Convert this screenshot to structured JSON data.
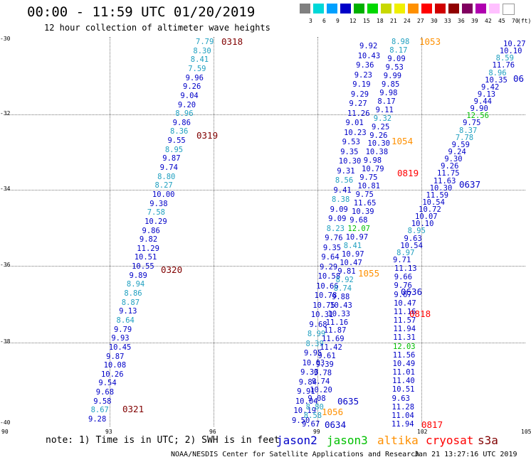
{
  "title": "00:00 - 11:59 UTC 01/20/2019",
  "subtitle": "12 hour collection of altimeter wave heights",
  "scale": {
    "colors": [
      "#808080",
      "#00d8d8",
      "#00a0ff",
      "#0000c8",
      "#00b000",
      "#00d800",
      "#c8d800",
      "#f0f000",
      "#ff9000",
      "#ff0000",
      "#d00000",
      "#900000",
      "#800060",
      "#b000b0",
      "#ffc0ff",
      "#ffffff"
    ],
    "labels": [
      "3",
      "6",
      "9",
      "12",
      "15",
      "18",
      "21",
      "24",
      "27",
      "30",
      "33",
      "36",
      "39",
      "42",
      "45",
      "70",
      "(ft)"
    ]
  },
  "axes": {
    "y_labels": [
      "-30",
      "-32",
      "-34",
      "-36",
      "-38",
      "-40"
    ],
    "x_labels": [
      "90",
      "93",
      "96",
      "99",
      "102",
      "105"
    ]
  },
  "colors": {
    "jason2": "#0000c8",
    "jason3": "#00c000",
    "altika": "#ff9000",
    "cryosat": "#ff0000",
    "s3a": "#800000",
    "light": "#20a0c0"
  },
  "series": [
    {
      "name": "t0318",
      "color": "s3a",
      "values": [
        [
          "7.79",
          "light"
        ],
        [
          "8.30",
          "light"
        ],
        [
          "8.41",
          "light"
        ],
        [
          "7.59",
          "light"
        ],
        [
          "9.96",
          "jason2"
        ],
        [
          "9.26",
          "jason2"
        ],
        [
          "9.04",
          "jason2"
        ],
        [
          "9.20",
          "jason2"
        ],
        [
          "8.96",
          "light"
        ],
        [
          "9.86",
          "jason2"
        ],
        [
          "8.36",
          "light"
        ],
        [
          "9.55",
          "jason2"
        ],
        [
          "8.95",
          "light"
        ],
        [
          "9.87",
          "jason2"
        ],
        [
          "9.74",
          "jason2"
        ],
        [
          "8.80",
          "light"
        ],
        [
          "8.27",
          "light"
        ],
        [
          "10.00",
          "jason2"
        ],
        [
          "9.38",
          "jason2"
        ],
        [
          "7.58",
          "light"
        ],
        [
          "10.29",
          "jason2"
        ],
        [
          "9.86",
          "jason2"
        ],
        [
          "9.82",
          "jason2"
        ],
        [
          "11.29",
          "jason2"
        ],
        [
          "10.51",
          "jason2"
        ],
        [
          "10.55",
          "jason2"
        ],
        [
          "9.89",
          "jason2"
        ],
        [
          "8.94",
          "light"
        ],
        [
          "8.86",
          "light"
        ],
        [
          "8.87",
          "light"
        ],
        [
          "9.13",
          "jason2"
        ],
        [
          "8.64",
          "light"
        ],
        [
          "9.79",
          "jason2"
        ],
        [
          "9.93",
          "jason2"
        ],
        [
          "10.45",
          "jason2"
        ],
        [
          "9.87",
          "jason2"
        ],
        [
          "10.08",
          "jason2"
        ],
        [
          "10.26",
          "jason2"
        ],
        [
          "9.54",
          "jason2"
        ],
        [
          "9.68",
          "jason2"
        ],
        [
          "9.58",
          "jason2"
        ],
        [
          "8.67",
          "light"
        ],
        [
          "9.28",
          "jason2"
        ]
      ]
    },
    {
      "name": "t1053",
      "values": [
        [
          "9.92",
          "jason2"
        ],
        [
          "10.43",
          "jason2"
        ],
        [
          "9.36",
          "jason2"
        ],
        [
          "9.23",
          "jason2"
        ],
        [
          "9.19",
          "jason2"
        ],
        [
          "9.29",
          "jason2"
        ],
        [
          "9.27",
          "jason2"
        ],
        [
          "11.26",
          "jason2"
        ],
        [
          "9.01",
          "jason2"
        ],
        [
          "10.23",
          "jason2"
        ],
        [
          "9.53",
          "jason2"
        ],
        [
          "9.35",
          "jason2"
        ],
        [
          "10.30",
          "jason2"
        ],
        [
          "9.31",
          "jason2"
        ],
        [
          "8.56",
          "light"
        ],
        [
          "9.41",
          "jason2"
        ],
        [
          "8.38",
          "light"
        ],
        [
          "9.09",
          "jason2"
        ],
        [
          "9.09",
          "jason2"
        ],
        [
          "8.23",
          "light"
        ],
        [
          "9.76",
          "jason2"
        ],
        [
          "9.35",
          "jason2"
        ],
        [
          "9.64",
          "jason2"
        ],
        [
          "9.29",
          "jason2"
        ],
        [
          "10.58",
          "jason2"
        ],
        [
          "10.66",
          "jason2"
        ],
        [
          "10.78",
          "jason2"
        ],
        [
          "10.75",
          "jason2"
        ],
        [
          "10.31",
          "jason2"
        ],
        [
          "9.68",
          "jason2"
        ],
        [
          "8.99",
          "light"
        ],
        [
          "8.39",
          "light"
        ],
        [
          "9.95",
          "jason2"
        ],
        [
          "10.03",
          "jason2"
        ],
        [
          "9.33",
          "jason2"
        ],
        [
          "9.84",
          "jason2"
        ],
        [
          "9.91",
          "jason2"
        ],
        [
          "10.04",
          "jason2"
        ],
        [
          "10.19",
          "jason2"
        ],
        [
          "9.50",
          "jason2"
        ]
      ]
    },
    {
      "name": "t0819",
      "values": [
        [
          "8.98",
          "light"
        ],
        [
          "8.17",
          "light"
        ],
        [
          "9.09",
          "jason2"
        ],
        [
          "9.53",
          "jason2"
        ],
        [
          "9.99",
          "jason2"
        ],
        [
          "9.85",
          "jason2"
        ],
        [
          "9.98",
          "jason2"
        ],
        [
          "8.17",
          "jason2"
        ],
        [
          "9.11",
          "jason2"
        ],
        [
          "9.32",
          "light"
        ],
        [
          "9.25",
          "jason2"
        ],
        [
          "9.26",
          "jason2"
        ],
        [
          "10.30",
          "jason2"
        ],
        [
          "10.38",
          "jason2"
        ],
        [
          "9.98",
          "jason2"
        ],
        [
          "10.79",
          "jason2"
        ],
        [
          "9.75",
          "jason2"
        ],
        [
          "10.81",
          "jason2"
        ],
        [
          "9.75",
          "jason2"
        ],
        [
          "11.65",
          "jason2"
        ],
        [
          "10.39",
          "jason2"
        ],
        [
          "9.68",
          "jason2"
        ],
        [
          "12.07",
          "jason3"
        ],
        [
          "10.97",
          "jason2"
        ],
        [
          "8.41",
          "light"
        ],
        [
          "10.97",
          "jason2"
        ],
        [
          "10.47",
          "jason2"
        ],
        [
          "9.81",
          "jason2"
        ],
        [
          "8.92",
          "light"
        ],
        [
          "8.74",
          "light"
        ],
        [
          "9.88",
          "jason2"
        ],
        [
          "10.43",
          "jason2"
        ],
        [
          "10.33",
          "jason2"
        ],
        [
          "11.16",
          "jason2"
        ],
        [
          "11.87",
          "jason2"
        ],
        [
          "11.69",
          "jason2"
        ],
        [
          "11.42",
          "jason2"
        ],
        [
          "9.61",
          "jason2"
        ],
        [
          "9.39",
          "jason2"
        ],
        [
          "9.78",
          "jason2"
        ],
        [
          "9.74",
          "jason2"
        ],
        [
          "10.20",
          "jason2"
        ],
        [
          "9.08",
          "jason2"
        ],
        [
          "8.80",
          "light"
        ],
        [
          "8.58",
          "light"
        ],
        [
          "9.67",
          "jason2"
        ]
      ]
    },
    {
      "name": "t0818",
      "values": [
        [
          "11.13",
          "jason2"
        ],
        [
          "9.66",
          "jason2"
        ],
        [
          "9.76",
          "jason2"
        ],
        [
          "9.67",
          "jason2"
        ],
        [
          "10.47",
          "jason2"
        ],
        [
          "11.16",
          "jason2"
        ],
        [
          "11.57",
          "jason2"
        ],
        [
          "11.94",
          "jason2"
        ],
        [
          "11.31",
          "jason2"
        ],
        [
          "12.03",
          "jason3"
        ],
        [
          "11.56",
          "jason2"
        ],
        [
          "10.49",
          "jason2"
        ],
        [
          "11.01",
          "jason2"
        ],
        [
          "11.40",
          "jason2"
        ],
        [
          "10.51",
          "jason2"
        ],
        [
          "9.63",
          "jason2"
        ],
        [
          "11.28",
          "jason2"
        ],
        [
          "11.04",
          "jason2"
        ],
        [
          "11.94",
          "jason2"
        ]
      ]
    },
    {
      "name": "t0637",
      "values": [
        [
          "10.27",
          "jason2"
        ],
        [
          "10.10",
          "jason2"
        ],
        [
          "8.59",
          "light"
        ],
        [
          "11.76",
          "jason2"
        ],
        [
          "8.96",
          "light"
        ],
        [
          "10.35",
          "jason2"
        ],
        [
          "9.42",
          "jason2"
        ],
        [
          "9.13",
          "jason2"
        ],
        [
          "9.44",
          "jason2"
        ],
        [
          "9.90",
          "jason2"
        ],
        [
          "12.56",
          "jason3"
        ],
        [
          "9.75",
          "jason2"
        ],
        [
          "8.37",
          "light"
        ],
        [
          "7.78",
          "light"
        ],
        [
          "9.59",
          "jason2"
        ],
        [
          "9.24",
          "jason2"
        ],
        [
          "9.30",
          "jason2"
        ],
        [
          "9.26",
          "jason2"
        ],
        [
          "11.75",
          "jason2"
        ],
        [
          "11.63",
          "jason2"
        ],
        [
          "10.30",
          "jason2"
        ],
        [
          "11.59",
          "jason2"
        ],
        [
          "10.54",
          "jason2"
        ],
        [
          "10.72",
          "jason2"
        ],
        [
          "10.07",
          "jason2"
        ],
        [
          "10.10",
          "jason2"
        ],
        [
          "8.95",
          "light"
        ],
        [
          "9.63",
          "jason2"
        ],
        [
          "10.54",
          "jason2"
        ],
        [
          "8.97",
          "light"
        ],
        [
          "9.71",
          "jason2"
        ]
      ]
    }
  ],
  "time_labels": [
    {
      "text": "0318",
      "color": "s3a"
    },
    {
      "text": "0319",
      "color": "s3a"
    },
    {
      "text": "0320",
      "color": "s3a"
    },
    {
      "text": "0321",
      "color": "s3a"
    },
    {
      "text": "1053",
      "color": "altika"
    },
    {
      "text": "1054",
      "color": "altika"
    },
    {
      "text": "1055",
      "color": "altika"
    },
    {
      "text": "1056",
      "color": "altika"
    },
    {
      "text": "0819",
      "color": "cryosat"
    },
    {
      "text": "0818",
      "color": "cryosat"
    },
    {
      "text": "0817",
      "color": "cryosat"
    },
    {
      "text": "06",
      "color": "jason2"
    },
    {
      "text": "0637",
      "color": "jason2"
    },
    {
      "text": "0636",
      "color": "jason2"
    },
    {
      "text": "0635",
      "color": "jason2"
    },
    {
      "text": "0634",
      "color": "jason2"
    }
  ],
  "note": "note: 1) Time is in UTC; 2) SWH is in feet",
  "legend": [
    {
      "label": "jason2",
      "color": "jason2"
    },
    {
      "label": "jason3",
      "color": "jason3"
    },
    {
      "label": "altika",
      "color": "altika"
    },
    {
      "label": "cryosat",
      "color": "cryosat"
    },
    {
      "label": "s3a",
      "color": "s3a"
    }
  ],
  "credit": "NOAA/NESDIS Center for Satellite Applications and Research",
  "timestamp": "Jan 21 13:27:16 UTC 2019"
}
